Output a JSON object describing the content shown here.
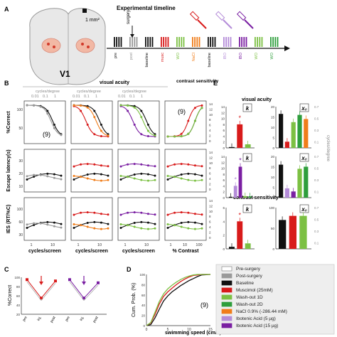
{
  "panels": {
    "A": {
      "letter": "A",
      "scale_label": "1 mm²",
      "v1_label": "V1",
      "timeline_title": "Experimental timeline",
      "surgery_label": "surgery",
      "stages": [
        {
          "label": "pre",
          "color": "#111111"
        },
        {
          "label": "post",
          "color": "#999999"
        },
        {
          "label": "baseline",
          "color": "#111111"
        },
        {
          "label": "musc",
          "color": "#d81b1b"
        },
        {
          "label": "WO",
          "color": "#7cc043"
        },
        {
          "label": "NaCl",
          "color": "#f07d1a"
        },
        {
          "label": "baseline",
          "color": "#111111"
        },
        {
          "label": "IBO",
          "color": "#b48cd8"
        },
        {
          "label": "IBO",
          "color": "#7a1fa2"
        },
        {
          "label": "WO",
          "color": "#7cc043"
        },
        {
          "label": "WO",
          "color": "#2e9e3c"
        }
      ]
    },
    "B": {
      "letter": "B",
      "visual_acuity_label": "visual acuity",
      "contrast_label": "contrast sensitivity",
      "cycles_degree_label": "cycles/degree",
      "top_ticks": [
        "0.01",
        "0.1",
        "1"
      ],
      "row_labels": [
        "%Correct",
        "Escape latency(s)",
        "IES (RT/%C)"
      ],
      "bottom_labels": [
        "cycles/screen",
        "cycles/screen",
        "cycles/screen",
        "% Contrast"
      ],
      "bottom_ticks": [
        "1",
        "10"
      ],
      "contrast_ticks": [
        "1",
        "10",
        "100"
      ],
      "n_label": "(9)",
      "row_ticks": [
        [
          "100",
          "50"
        ],
        [
          "10",
          "20",
          "30"
        ],
        [
          "30",
          "60",
          "100"
        ]
      ],
      "right_ticks": [
        "14",
        "12",
        "10",
        "8",
        "6",
        "4",
        "2",
        "0"
      ]
    },
    "C": {
      "letter": "C",
      "ylabel": "%Correct",
      "yticks": [
        "100",
        "80",
        "60",
        "40",
        "20"
      ],
      "xticks": [
        "pre",
        "inj.",
        "post",
        "pre",
        "inj.",
        "post"
      ]
    },
    "D": {
      "letter": "D",
      "ylabel": "Cum. Prob. (%)",
      "xlabel": "swimming speed (cm/s)",
      "yticks": [
        "100",
        "80",
        "60",
        "40",
        "20",
        "0"
      ],
      "xticks": [
        "0",
        "5",
        "10",
        "15"
      ],
      "n_label": "(9)"
    },
    "E": {
      "letter": "E",
      "visual_acuity_label": "visual acuity",
      "contrast_label": "contrast sensitivity",
      "k_label": "k",
      "x0_label": "x₀",
      "right_axis_label": "cycles/degree",
      "ticks_k": [
        "14",
        "12",
        "10",
        "8",
        "6",
        "4",
        "2",
        "0"
      ],
      "ticks_x0": [
        "20",
        "15",
        "10",
        "5",
        "0"
      ],
      "ticks_right": [
        "0.7",
        "0.6",
        "0.5",
        "0.4",
        "0.3",
        "0.2",
        "0.1",
        "0"
      ],
      "ticks_k_small": [
        "6",
        "4",
        "2",
        "0"
      ],
      "ticks_x0_small": [
        "100",
        "50",
        "0"
      ]
    }
  },
  "legend": {
    "entries": [
      {
        "label": "Pre-surgery",
        "color": "#ffffff",
        "border": "#888888"
      },
      {
        "label": "Post-surgery",
        "color": "#9a9a9a",
        "border": "#9a9a9a"
      },
      {
        "label": "Baseline",
        "color": "#111111",
        "border": "#111111"
      },
      {
        "label": "Muscimol (25mM)",
        "color": "#d81b1b",
        "border": "#d81b1b"
      },
      {
        "label": "Wash-out 1D",
        "color": "#7cc043",
        "border": "#7cc043"
      },
      {
        "label": "Wash-out 2D",
        "color": "#2e9e3c",
        "border": "#2e9e3c"
      },
      {
        "label": "NaCl 0.9% (-286.44 mM)",
        "color": "#f07d1a",
        "border": "#f07d1a"
      },
      {
        "label": "Ibotenic Acid (5 µg)",
        "color": "#b48cd8",
        "border": "#b48cd8"
      },
      {
        "label": "Ibotenic Acid (15 µg)",
        "color": "#7a1fa2",
        "border": "#7a1fa2"
      }
    ]
  },
  "chart_data": [
    {
      "type": "bar",
      "panel": "E-visual-acuity-k-musc",
      "categories": [
        "Baseline",
        "Muscimol",
        "Wash-out 1D"
      ],
      "values": [
        0.3,
        8.0,
        1.2
      ],
      "ylim": [
        0,
        14
      ]
    },
    {
      "type": "bar",
      "panel": "E-visual-acuity-x0-musc",
      "categories": [
        "Baseline",
        "Muscimol",
        "Wash-out 1D",
        "Wash-out 2D",
        "NaCl"
      ],
      "values": [
        16.5,
        3.0,
        12.5,
        16.0,
        14.0
      ],
      "ylim": [
        0,
        20
      ]
    },
    {
      "type": "bar",
      "panel": "E-visual-acuity-k-ibo",
      "categories": [
        "Baseline",
        "Ibotenic 5",
        "Ibotenic 15",
        "Wash-out 1D",
        "Wash-out 2D"
      ],
      "values": [
        0.3,
        4.0,
        10.5,
        0.5,
        0.4
      ],
      "ylim": [
        0,
        14
      ]
    },
    {
      "type": "bar",
      "panel": "E-visual-acuity-x0-ibo",
      "categories": [
        "Baseline",
        "Ibotenic 5",
        "Ibotenic 15",
        "Wash-out 1D",
        "Wash-out 2D"
      ],
      "values": [
        16.0,
        4.5,
        3.0,
        14.0,
        15.0
      ],
      "ylim": [
        0,
        20
      ]
    },
    {
      "type": "bar",
      "panel": "E-contrast-k",
      "categories": [
        "Baseline",
        "Muscimol",
        "Wash-out 1D"
      ],
      "values": [
        0.3,
        4.0,
        0.8
      ],
      "ylim": [
        0,
        6
      ]
    },
    {
      "type": "bar",
      "panel": "E-contrast-x0",
      "categories": [
        "Baseline",
        "Muscimol",
        "Wash-out 1D"
      ],
      "values": [
        70,
        80,
        80
      ],
      "ylim": [
        0,
        100
      ]
    },
    {
      "type": "line",
      "panel": "D-cumulative",
      "series": [
        {
          "name": "Baseline",
          "color": "#111111",
          "x": [
            0,
            1,
            2,
            3,
            4,
            5,
            6,
            7,
            8,
            9,
            10,
            11,
            12,
            13,
            15
          ],
          "y": [
            0,
            2,
            15,
            32,
            48,
            58,
            66,
            72,
            78,
            83,
            88,
            92,
            96,
            99,
            100
          ]
        },
        {
          "name": "Muscimol",
          "color": "#d81b1b",
          "x": [
            0,
            1,
            2,
            3,
            4,
            5,
            6,
            7,
            8,
            9,
            10,
            11,
            12,
            13,
            15
          ],
          "y": [
            0,
            5,
            22,
            42,
            57,
            66,
            73,
            80,
            86,
            91,
            95,
            98,
            99,
            100,
            100
          ]
        },
        {
          "name": "Wash-out 1D",
          "color": "#7cc043",
          "x": [
            0,
            1,
            2,
            3,
            4,
            5,
            6,
            7,
            8,
            9,
            10,
            11,
            12,
            13,
            15
          ],
          "y": [
            0,
            6,
            26,
            47,
            62,
            72,
            79,
            85,
            90,
            94,
            97,
            99,
            100,
            100,
            100
          ]
        }
      ],
      "xlim": [
        0,
        15
      ],
      "ylim": [
        0,
        100
      ]
    },
    {
      "type": "line",
      "panel": "C-percent-correct",
      "series": [
        {
          "name": "Muscimol",
          "color": "#d81b1b",
          "x": [
            0,
            1,
            2
          ],
          "y": [
            95,
            55,
            92
          ]
        },
        {
          "name": "Ibotenic Acid (15 µg)",
          "color": "#7a1fa2",
          "x": [
            3,
            4,
            5
          ],
          "y": [
            95,
            55,
            88
          ]
        }
      ],
      "ylim": [
        20,
        100
      ]
    },
    {
      "type": "line",
      "panel": "B-percent-correct",
      "series": [
        {
          "name": "Baseline",
          "color": "#111111",
          "x": [
            1,
            2,
            3,
            5,
            8,
            12,
            20
          ],
          "y": [
            100,
            98,
            96,
            93,
            85,
            72,
            55
          ]
        },
        {
          "name": "Muscimol",
          "color": "#d81b1b",
          "x": [
            1,
            2,
            3,
            5,
            8,
            12,
            20
          ],
          "y": [
            95,
            75,
            55,
            48,
            47,
            47,
            47
          ]
        },
        {
          "name": "Wash-out 1D",
          "color": "#7cc043",
          "x": [
            1,
            2,
            3,
            5,
            8,
            12,
            20
          ],
          "y": [
            100,
            98,
            95,
            90,
            82,
            68,
            52
          ]
        }
      ],
      "ylim": [
        40,
        100
      ]
    }
  ]
}
